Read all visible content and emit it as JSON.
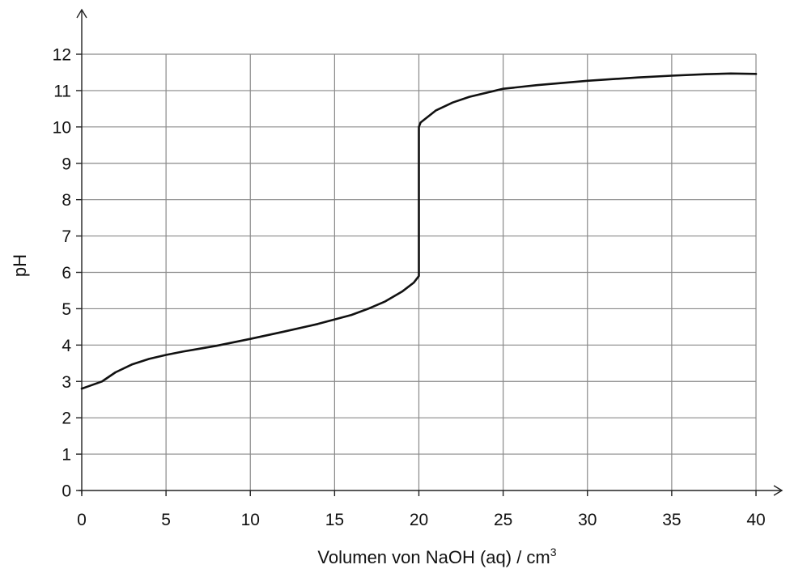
{
  "chart_data": {
    "type": "line",
    "title": "",
    "xlabel": "Volumen von NaOH (aq) / cm",
    "xlabel_superscript": "3",
    "ylabel": "pH",
    "xlim": [
      0,
      40
    ],
    "ylim": [
      0,
      12
    ],
    "xticks": [
      0,
      5,
      10,
      15,
      20,
      25,
      30,
      35,
      40
    ],
    "yticks": [
      0,
      1,
      2,
      3,
      4,
      5,
      6,
      7,
      8,
      9,
      10,
      11,
      12
    ],
    "grid": true,
    "series": [
      {
        "x": [
          0,
          1.2,
          2,
          3,
          4,
          5,
          6,
          8,
          10,
          12,
          14,
          16,
          17,
          18,
          19,
          19.7,
          20,
          20,
          20.1,
          21,
          22,
          23,
          25,
          27,
          30,
          33,
          35,
          37,
          38.5,
          40
        ],
        "y": [
          2.8,
          3.0,
          3.25,
          3.47,
          3.62,
          3.73,
          3.82,
          3.98,
          4.17,
          4.37,
          4.58,
          4.83,
          5.0,
          5.2,
          5.47,
          5.72,
          5.9,
          10.0,
          10.12,
          10.45,
          10.67,
          10.83,
          11.05,
          11.15,
          11.27,
          11.36,
          11.41,
          11.45,
          11.47,
          11.46
        ]
      }
    ]
  }
}
